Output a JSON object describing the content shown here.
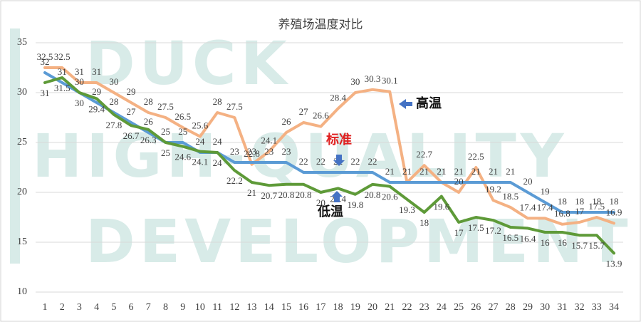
{
  "chart_data": {
    "type": "line",
    "title": "养殖场温度对比",
    "watermark": [
      "DUCK",
      "HIGH-QUALITY",
      "DEVELOPMENT"
    ],
    "categories": [
      "1",
      "2",
      "3",
      "4",
      "5",
      "6",
      "7",
      "8",
      "9",
      "10",
      "11",
      "12",
      "13",
      "14",
      "15",
      "16",
      "17",
      "18",
      "19",
      "20",
      "21",
      "22",
      "23",
      "24",
      "25",
      "26",
      "27",
      "28",
      "29",
      "30",
      "31",
      "32",
      "33",
      "34"
    ],
    "series": [
      {
        "name": "高温",
        "color": "#f4b183",
        "values": [
          32.5,
          32.5,
          31,
          31,
          30,
          29,
          28,
          27.5,
          26.5,
          25.6,
          28,
          27.5,
          22.8,
          24.1,
          26,
          27,
          26.6,
          28.4,
          30,
          30.3,
          30.1,
          21,
          22.7,
          21,
          20,
          22.5,
          19.2,
          18.5,
          17.4,
          17.4,
          16.8,
          17,
          17.5,
          16.9
        ]
      },
      {
        "name": "标准",
        "color": "#5b9bd5",
        "values": [
          32,
          31,
          30,
          29,
          28,
          27,
          26,
          25,
          25,
          24,
          24,
          23,
          23,
          23,
          23,
          22,
          22,
          22,
          22,
          22,
          21,
          21,
          21,
          21,
          21,
          21,
          21,
          21,
          20,
          19,
          18,
          18,
          18,
          18
        ]
      },
      {
        "name": "低温",
        "color": "#5e9a38",
        "values": [
          31,
          31.5,
          30,
          29.4,
          27.8,
          26.7,
          26.3,
          25,
          24.6,
          24.1,
          24,
          22.2,
          21,
          20.7,
          20.8,
          20.8,
          20,
          20.4,
          19.8,
          20.8,
          20.6,
          19.3,
          18,
          19.6,
          17,
          17.5,
          17.2,
          16.5,
          16.4,
          16,
          16,
          15.7,
          15.7,
          13.9
        ]
      }
    ],
    "ylim": [
      10,
      35
    ],
    "yticks": [
      10,
      15,
      20,
      25,
      30,
      35
    ],
    "grid": true,
    "annotations": [
      {
        "text": "高温"
      },
      {
        "text": "标准"
      },
      {
        "text": "低温"
      }
    ]
  }
}
